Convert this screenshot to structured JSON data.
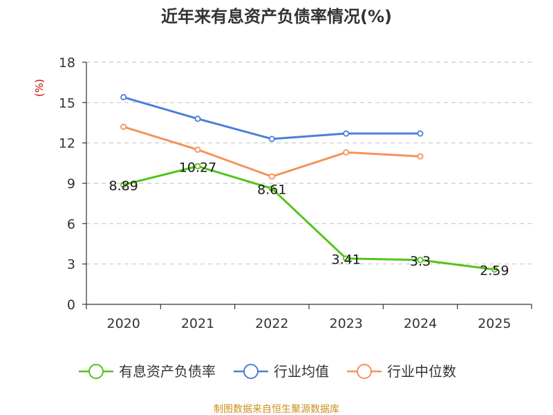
{
  "chart_data": {
    "type": "line",
    "title": "近年来有息资产负债率情况(%)",
    "ylabel": "(%)",
    "categories": [
      "2020",
      "2021",
      "2022",
      "2023",
      "2024",
      "2025"
    ],
    "ylim": [
      0,
      18
    ],
    "yticks": [
      0,
      3,
      6,
      9,
      12,
      15,
      18
    ],
    "grid": true,
    "legend_position": "bottom",
    "series": [
      {
        "name": "有息资产负债率",
        "color": "#52c41a",
        "values": [
          8.89,
          10.27,
          8.61,
          3.41,
          3.3,
          2.59
        ],
        "data_labels": [
          "8.89",
          "10.27",
          "8.61",
          "3.41",
          "3.3",
          "2.59"
        ]
      },
      {
        "name": "行业均值",
        "color": "#4a7fd8",
        "values": [
          15.4,
          13.8,
          12.3,
          12.7,
          12.7,
          null
        ]
      },
      {
        "name": "行业中位数",
        "color": "#f4925a",
        "values": [
          13.2,
          11.5,
          9.5,
          11.3,
          11.0,
          null
        ]
      }
    ]
  },
  "footer": {
    "source": "制图数据来自恒生聚源数据库"
  }
}
